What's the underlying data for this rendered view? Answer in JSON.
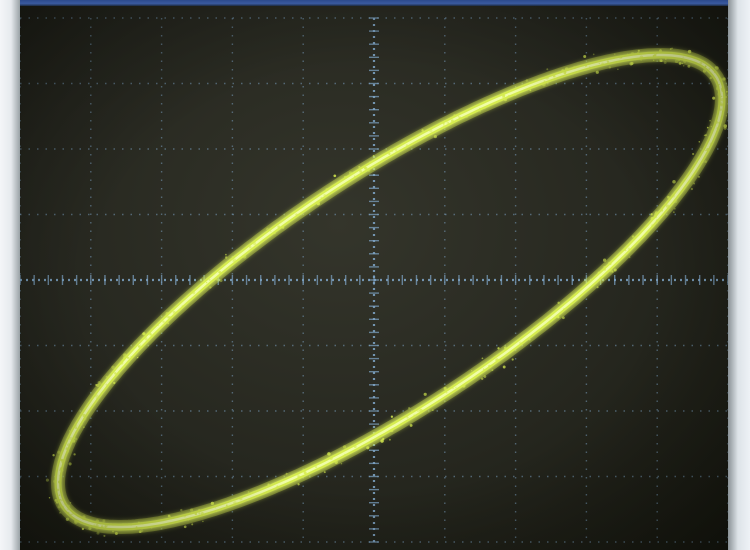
{
  "scene": {
    "subject": "oscilloscope-xy-lissajous-trace",
    "trace_color": "#d6ec4f",
    "grid_color": "#7fa6c8",
    "screen_color": "#26271f",
    "bezel_color": "#e9edf0"
  },
  "graticule": {
    "major_divisions_x": 10,
    "major_divisions_y": 8,
    "minor_ticks_per_division": 5
  }
}
